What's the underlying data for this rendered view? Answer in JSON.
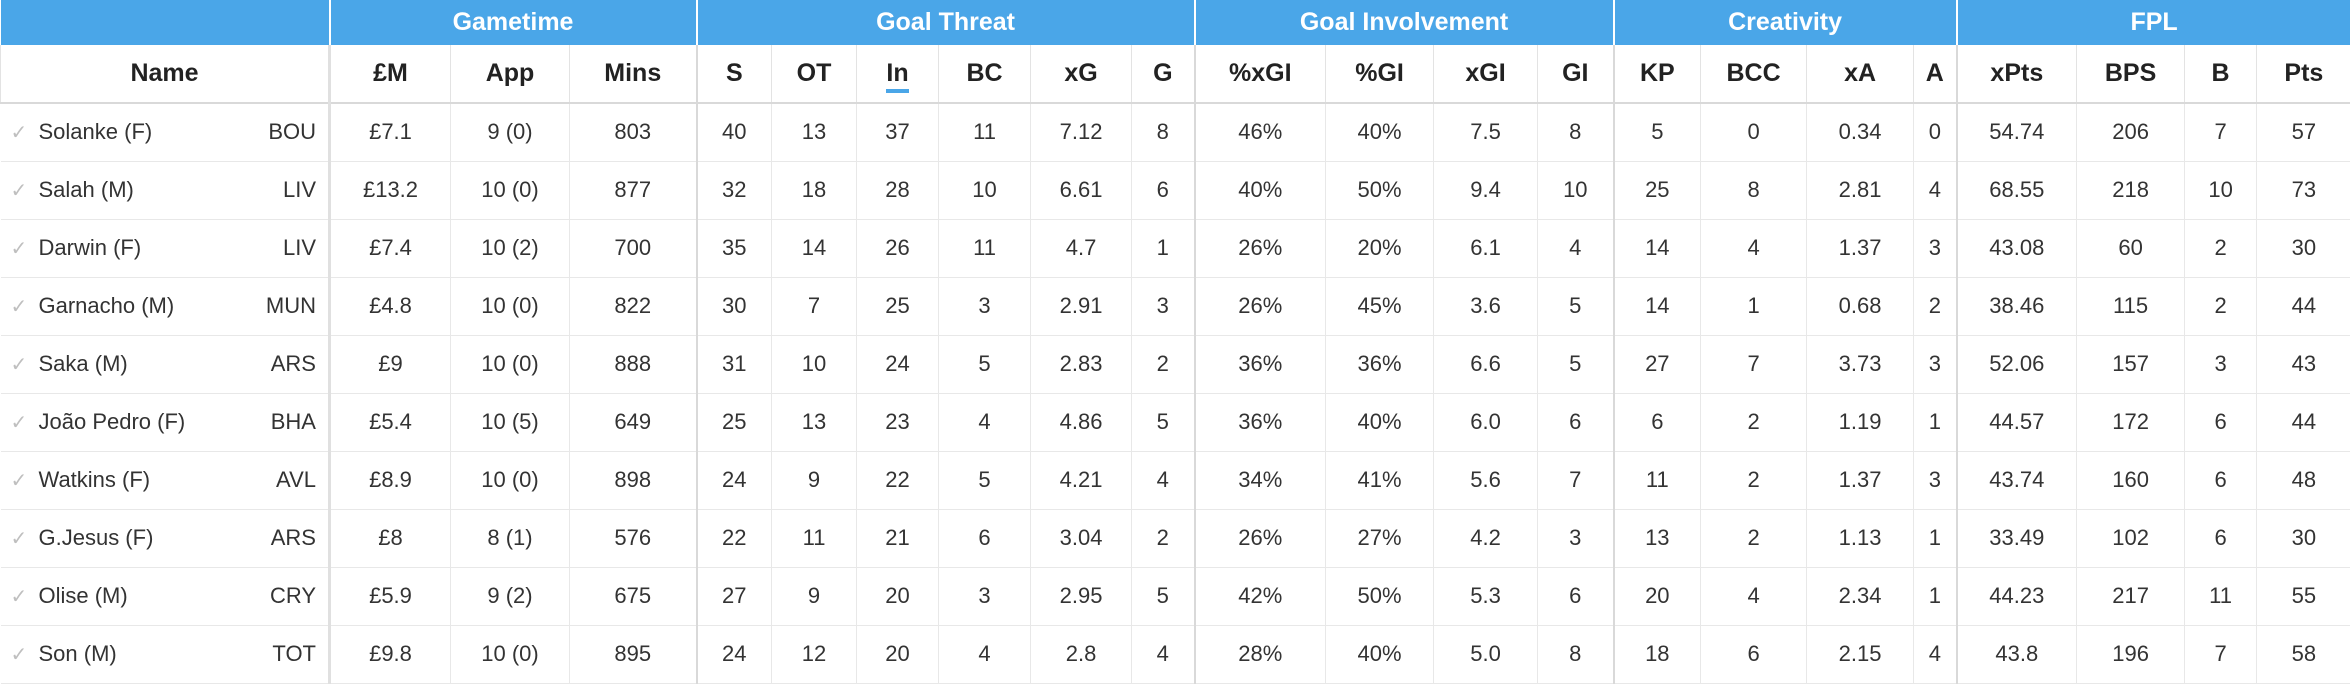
{
  "groups": [
    {
      "label": ""
    },
    {
      "label": "Gametime"
    },
    {
      "label": "Goal Threat"
    },
    {
      "label": "Goal Involvement"
    },
    {
      "label": "Creativity"
    },
    {
      "label": "FPL"
    }
  ],
  "columns": [
    "Name",
    "£M",
    "App",
    "Mins",
    "S",
    "OT",
    "In",
    "BC",
    "xG",
    "G",
    "%xGI",
    "%GI",
    "xGI",
    "GI",
    "KP",
    "BCC",
    "xA",
    "A",
    "xPts",
    "BPS",
    "B",
    "Pts"
  ],
  "sorted_column": "In",
  "rows": [
    {
      "name": "Solanke (F)",
      "team": "BOU",
      "cells": [
        "£7.1",
        "9 (0)",
        "803",
        "40",
        "13",
        "37",
        "11",
        "7.12",
        "8",
        "46%",
        "40%",
        "7.5",
        "8",
        "5",
        "0",
        "0.34",
        "0",
        "54.74",
        "206",
        "7",
        "57"
      ]
    },
    {
      "name": "Salah (M)",
      "team": "LIV",
      "cells": [
        "£13.2",
        "10 (0)",
        "877",
        "32",
        "18",
        "28",
        "10",
        "6.61",
        "6",
        "40%",
        "50%",
        "9.4",
        "10",
        "25",
        "8",
        "2.81",
        "4",
        "68.55",
        "218",
        "10",
        "73"
      ]
    },
    {
      "name": "Darwin (F)",
      "team": "LIV",
      "cells": [
        "£7.4",
        "10 (2)",
        "700",
        "35",
        "14",
        "26",
        "11",
        "4.7",
        "1",
        "26%",
        "20%",
        "6.1",
        "4",
        "14",
        "4",
        "1.37",
        "3",
        "43.08",
        "60",
        "2",
        "30"
      ]
    },
    {
      "name": "Garnacho (M)",
      "team": "MUN",
      "cells": [
        "£4.8",
        "10 (0)",
        "822",
        "30",
        "7",
        "25",
        "3",
        "2.91",
        "3",
        "26%",
        "45%",
        "3.6",
        "5",
        "14",
        "1",
        "0.68",
        "2",
        "38.46",
        "115",
        "2",
        "44"
      ]
    },
    {
      "name": "Saka (M)",
      "team": "ARS",
      "cells": [
        "£9",
        "10 (0)",
        "888",
        "31",
        "10",
        "24",
        "5",
        "2.83",
        "2",
        "36%",
        "36%",
        "6.6",
        "5",
        "27",
        "7",
        "3.73",
        "3",
        "52.06",
        "157",
        "3",
        "43"
      ]
    },
    {
      "name": "João Pedro (F)",
      "team": "BHA",
      "cells": [
        "£5.4",
        "10 (5)",
        "649",
        "25",
        "13",
        "23",
        "4",
        "4.86",
        "5",
        "36%",
        "40%",
        "6.0",
        "6",
        "6",
        "2",
        "1.19",
        "1",
        "44.57",
        "172",
        "6",
        "44"
      ]
    },
    {
      "name": "Watkins (F)",
      "team": "AVL",
      "cells": [
        "£8.9",
        "10 (0)",
        "898",
        "24",
        "9",
        "22",
        "5",
        "4.21",
        "4",
        "34%",
        "41%",
        "5.6",
        "7",
        "11",
        "2",
        "1.37",
        "3",
        "43.74",
        "160",
        "6",
        "48"
      ]
    },
    {
      "name": "G.Jesus (F)",
      "team": "ARS",
      "cells": [
        "£8",
        "8 (1)",
        "576",
        "22",
        "11",
        "21",
        "6",
        "3.04",
        "2",
        "26%",
        "27%",
        "4.2",
        "3",
        "13",
        "2",
        "1.13",
        "1",
        "33.49",
        "102",
        "6",
        "30"
      ]
    },
    {
      "name": "Olise (M)",
      "team": "CRY",
      "cells": [
        "£5.9",
        "9 (2)",
        "675",
        "27",
        "9",
        "20",
        "3",
        "2.95",
        "5",
        "42%",
        "50%",
        "5.3",
        "6",
        "20",
        "4",
        "2.34",
        "1",
        "44.23",
        "217",
        "11",
        "55"
      ]
    },
    {
      "name": "Son (M)",
      "team": "TOT",
      "cells": [
        "£9.8",
        "10 (0)",
        "895",
        "24",
        "12",
        "20",
        "4",
        "2.8",
        "4",
        "28%",
        "40%",
        "5.0",
        "8",
        "18",
        "6",
        "2.15",
        "4",
        "43.8",
        "196",
        "7",
        "58"
      ]
    }
  ]
}
